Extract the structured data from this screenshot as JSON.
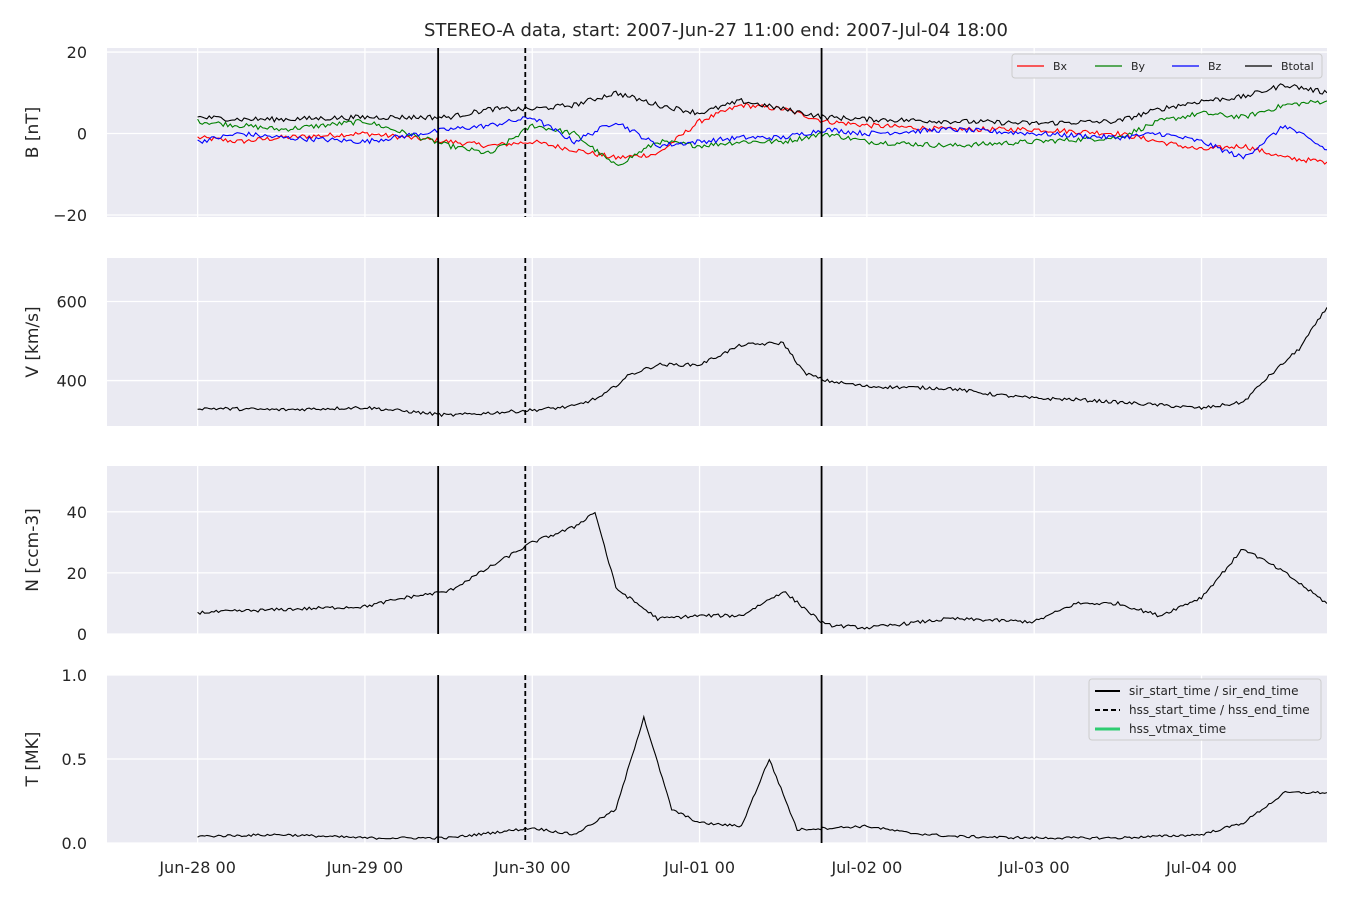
{
  "chart_data": {
    "title": "STEREO-A data, start: 2007-Jun-27 11:00  end: 2007-Jul-04 18:00",
    "type": "line",
    "x_axis": {
      "range": [
        "2007-06-27T11:00",
        "2007-07-04T18:00"
      ],
      "tick_labels": [
        "Jun-28 00",
        "Jun-29 00",
        "Jun-30 00",
        "Jul-01 00",
        "Jul-02 00",
        "Jul-03 00",
        "Jul-04 00"
      ],
      "tick_dates": [
        "2007-06-28T00:00",
        "2007-06-29T00:00",
        "2007-06-30T00:00",
        "2007-07-01T00:00",
        "2007-07-02T00:00",
        "2007-07-03T00:00",
        "2007-07-04T00:00"
      ]
    },
    "event_lines": [
      {
        "label": "sir_start_time / sir_end_time",
        "style": "solid",
        "color": "#000000",
        "times": [
          "2007-06-29T10:30",
          "2007-07-01T17:30"
        ]
      },
      {
        "label": "hss_start_time / hss_end_time",
        "style": "dashed",
        "color": "#000000",
        "times": [
          "2007-06-29T23:00"
        ]
      },
      {
        "label": "hss_vtmax_time",
        "style": "solid",
        "color": "#2ecc71",
        "times": []
      }
    ],
    "panels": [
      {
        "ylabel": "B [nT]",
        "ylim": [
          -20.5,
          21
        ],
        "yticks": [
          20,
          0,
          -20
        ],
        "ytick_labels": [
          "20",
          "0",
          "−20"
        ],
        "legend": "top-right",
        "series": [
          {
            "name": "Bx",
            "color": "#ff0000",
            "points": [
              [
                "2007-06-28T00:00",
                -1
              ],
              [
                "2007-06-28T06:00",
                -2
              ],
              [
                "2007-06-28T12:00",
                -1
              ],
              [
                "2007-06-29T00:00",
                0
              ],
              [
                "2007-06-29T12:00",
                -2
              ],
              [
                "2007-06-29T18:00",
                -3
              ],
              [
                "2007-06-30T00:00",
                -2
              ],
              [
                "2007-06-30T06:00",
                -4
              ],
              [
                "2007-06-30T12:00",
                -6
              ],
              [
                "2007-06-30T18:00",
                -5
              ],
              [
                "2007-07-01T00:00",
                3
              ],
              [
                "2007-07-01T06:00",
                7
              ],
              [
                "2007-07-01T12:00",
                6
              ],
              [
                "2007-07-01T18:00",
                3
              ],
              [
                "2007-07-02T00:00",
                2
              ],
              [
                "2007-07-02T12:00",
                1
              ],
              [
                "2007-07-03T00:00",
                1
              ],
              [
                "2007-07-03T12:00",
                0
              ],
              [
                "2007-07-03T18:00",
                -2
              ],
              [
                "2007-07-04T00:00",
                -4
              ],
              [
                "2007-07-04T06:00",
                -3
              ],
              [
                "2007-07-04T12:00",
                -6
              ],
              [
                "2007-07-04T18:00",
                -7
              ]
            ]
          },
          {
            "name": "By",
            "color": "#008000",
            "points": [
              [
                "2007-06-28T00:00",
                3
              ],
              [
                "2007-06-28T06:00",
                2
              ],
              [
                "2007-06-28T12:00",
                1
              ],
              [
                "2007-06-29T00:00",
                3
              ],
              [
                "2007-06-29T12:00",
                -3
              ],
              [
                "2007-06-29T18:00",
                -5
              ],
              [
                "2007-06-30T00:00",
                2
              ],
              [
                "2007-06-30T06:00",
                0
              ],
              [
                "2007-06-30T12:00",
                -8
              ],
              [
                "2007-06-30T18:00",
                -2
              ],
              [
                "2007-07-01T00:00",
                -3
              ],
              [
                "2007-07-01T06:00",
                -2
              ],
              [
                "2007-07-01T12:00",
                -2
              ],
              [
                "2007-07-01T18:00",
                0
              ],
              [
                "2007-07-02T00:00",
                -2
              ],
              [
                "2007-07-02T12:00",
                -3
              ],
              [
                "2007-07-03T00:00",
                -2
              ],
              [
                "2007-07-03T12:00",
                -1
              ],
              [
                "2007-07-03T18:00",
                3
              ],
              [
                "2007-07-04T00:00",
                5
              ],
              [
                "2007-07-04T06:00",
                4
              ],
              [
                "2007-07-04T12:00",
                7
              ],
              [
                "2007-07-04T18:00",
                8
              ]
            ]
          },
          {
            "name": "Bz",
            "color": "#0000ff",
            "points": [
              [
                "2007-06-28T00:00",
                -2
              ],
              [
                "2007-06-28T06:00",
                0
              ],
              [
                "2007-06-28T12:00",
                -1
              ],
              [
                "2007-06-29T00:00",
                -2
              ],
              [
                "2007-06-29T12:00",
                1
              ],
              [
                "2007-06-29T18:00",
                2
              ],
              [
                "2007-06-30T00:00",
                4
              ],
              [
                "2007-06-30T06:00",
                -2
              ],
              [
                "2007-06-30T12:00",
                3
              ],
              [
                "2007-06-30T18:00",
                -3
              ],
              [
                "2007-07-01T00:00",
                -2
              ],
              [
                "2007-07-01T06:00",
                -1
              ],
              [
                "2007-07-01T12:00",
                -1
              ],
              [
                "2007-07-01T18:00",
                1
              ],
              [
                "2007-07-02T00:00",
                0
              ],
              [
                "2007-07-02T12:00",
                1
              ],
              [
                "2007-07-03T00:00",
                0
              ],
              [
                "2007-07-03T12:00",
                -1
              ],
              [
                "2007-07-03T18:00",
                0
              ],
              [
                "2007-07-04T00:00",
                -2
              ],
              [
                "2007-07-04T06:00",
                -6
              ],
              [
                "2007-07-04T12:00",
                2
              ],
              [
                "2007-07-04T18:00",
                -4
              ]
            ]
          },
          {
            "name": "Btotal",
            "color": "#000000",
            "points": [
              [
                "2007-06-28T00:00",
                4
              ],
              [
                "2007-06-28T06:00",
                3.5
              ],
              [
                "2007-06-28T12:00",
                3.5
              ],
              [
                "2007-06-29T00:00",
                4
              ],
              [
                "2007-06-29T12:00",
                4
              ],
              [
                "2007-06-29T18:00",
                6
              ],
              [
                "2007-06-30T00:00",
                6
              ],
              [
                "2007-06-30T06:00",
                7
              ],
              [
                "2007-06-30T12:00",
                10
              ],
              [
                "2007-06-30T18:00",
                7
              ],
              [
                "2007-07-01T00:00",
                5
              ],
              [
                "2007-07-01T06:00",
                8
              ],
              [
                "2007-07-01T12:00",
                6
              ],
              [
                "2007-07-01T18:00",
                4
              ],
              [
                "2007-07-02T00:00",
                3.5
              ],
              [
                "2007-07-02T12:00",
                3
              ],
              [
                "2007-07-03T00:00",
                2.5
              ],
              [
                "2007-07-03T12:00",
                3
              ],
              [
                "2007-07-03T18:00",
                6
              ],
              [
                "2007-07-04T00:00",
                8
              ],
              [
                "2007-07-04T06:00",
                9
              ],
              [
                "2007-07-04T12:00",
                12
              ],
              [
                "2007-07-04T18:00",
                10
              ]
            ]
          }
        ]
      },
      {
        "ylabel": "V [km/s]",
        "ylim": [
          285,
          710
        ],
        "yticks": [
          600,
          400
        ],
        "ytick_labels": [
          "600",
          "400"
        ],
        "series": [
          {
            "name": "",
            "color": "#000000",
            "points": [
              [
                "2007-06-28T00:00",
                330
              ],
              [
                "2007-06-28T06:00",
                328
              ],
              [
                "2007-06-28T12:00",
                326
              ],
              [
                "2007-06-29T00:00",
                332
              ],
              [
                "2007-06-29T06:00",
                322
              ],
              [
                "2007-06-29T12:00",
                312
              ],
              [
                "2007-06-29T18:00",
                318
              ],
              [
                "2007-06-30T00:00",
                325
              ],
              [
                "2007-06-30T06:00",
                335
              ],
              [
                "2007-06-30T10:00",
                360
              ],
              [
                "2007-06-30T14:00",
                415
              ],
              [
                "2007-06-30T18:00",
                440
              ],
              [
                "2007-07-01T00:00",
                440
              ],
              [
                "2007-07-01T06:00",
                490
              ],
              [
                "2007-07-01T12:00",
                495
              ],
              [
                "2007-07-01T15:00",
                420
              ],
              [
                "2007-07-01T18:00",
                400
              ],
              [
                "2007-07-02T00:00",
                385
              ],
              [
                "2007-07-02T12:00",
                380
              ],
              [
                "2007-07-02T18:00",
                365
              ],
              [
                "2007-07-03T00:00",
                355
              ],
              [
                "2007-07-03T06:00",
                352
              ],
              [
                "2007-07-03T12:00",
                345
              ],
              [
                "2007-07-03T18:00",
                338
              ],
              [
                "2007-07-04T00:00",
                330
              ],
              [
                "2007-07-04T06:00",
                345
              ],
              [
                "2007-07-04T09:00",
                400
              ],
              [
                "2007-07-04T14:00",
                480
              ],
              [
                "2007-07-04T18:00",
                585
              ]
            ]
          }
        ]
      },
      {
        "ylabel": "N [ccm-3]",
        "ylim": [
          0,
          55
        ],
        "yticks": [
          40,
          20,
          0
        ],
        "ytick_labels": [
          "40",
          "20",
          "0"
        ],
        "series": [
          {
            "name": "",
            "color": "#000000",
            "points": [
              [
                "2007-06-28T00:00",
                7
              ],
              [
                "2007-06-28T12:00",
                8
              ],
              [
                "2007-06-29T00:00",
                9
              ],
              [
                "2007-06-29T06:00",
                12
              ],
              [
                "2007-06-29T12:00",
                14
              ],
              [
                "2007-06-29T18:00",
                22
              ],
              [
                "2007-06-30T00:00",
                30
              ],
              [
                "2007-06-30T06:00",
                35
              ],
              [
                "2007-06-30T09:00",
                40
              ],
              [
                "2007-06-30T12:00",
                15
              ],
              [
                "2007-06-30T18:00",
                5
              ],
              [
                "2007-07-01T00:00",
                6
              ],
              [
                "2007-07-01T06:00",
                6
              ],
              [
                "2007-07-01T12:00",
                14
              ],
              [
                "2007-07-01T18:00",
                3
              ],
              [
                "2007-07-02T00:00",
                2
              ],
              [
                "2007-07-02T12:00",
                5
              ],
              [
                "2007-07-03T00:00",
                4
              ],
              [
                "2007-07-03T06:00",
                10
              ],
              [
                "2007-07-03T12:00",
                10
              ],
              [
                "2007-07-03T18:00",
                6
              ],
              [
                "2007-07-04T00:00",
                12
              ],
              [
                "2007-07-04T06:00",
                28
              ],
              [
                "2007-07-04T12:00",
                20
              ],
              [
                "2007-07-04T18:00",
                10
              ]
            ]
          }
        ]
      },
      {
        "ylabel": "T [MK]",
        "ylim": [
          0,
          1.0
        ],
        "yticks": [
          1.0,
          0.5,
          0.0
        ],
        "ytick_labels": [
          "1.0",
          "0.5",
          "0.0"
        ],
        "legend": "top-right",
        "series": [
          {
            "name": "",
            "color": "#000000",
            "points": [
              [
                "2007-06-28T00:00",
                0.04
              ],
              [
                "2007-06-28T12:00",
                0.05
              ],
              [
                "2007-06-29T00:00",
                0.03
              ],
              [
                "2007-06-29T12:00",
                0.03
              ],
              [
                "2007-06-29T18:00",
                0.06
              ],
              [
                "2007-06-30T00:00",
                0.09
              ],
              [
                "2007-06-30T06:00",
                0.05
              ],
              [
                "2007-06-30T12:00",
                0.2
              ],
              [
                "2007-06-30T16:00",
                0.75
              ],
              [
                "2007-06-30T20:00",
                0.2
              ],
              [
                "2007-07-01T00:00",
                0.12
              ],
              [
                "2007-07-01T06:00",
                0.1
              ],
              [
                "2007-07-01T10:00",
                0.5
              ],
              [
                "2007-07-01T14:00",
                0.08
              ],
              [
                "2007-07-02T00:00",
                0.1
              ],
              [
                "2007-07-02T06:00",
                0.06
              ],
              [
                "2007-07-02T12:00",
                0.04
              ],
              [
                "2007-07-03T00:00",
                0.03
              ],
              [
                "2007-07-03T12:00",
                0.03
              ],
              [
                "2007-07-04T00:00",
                0.05
              ],
              [
                "2007-07-04T06:00",
                0.12
              ],
              [
                "2007-07-04T12:00",
                0.3
              ],
              [
                "2007-07-04T18:00",
                0.3
              ]
            ]
          }
        ]
      }
    ]
  }
}
